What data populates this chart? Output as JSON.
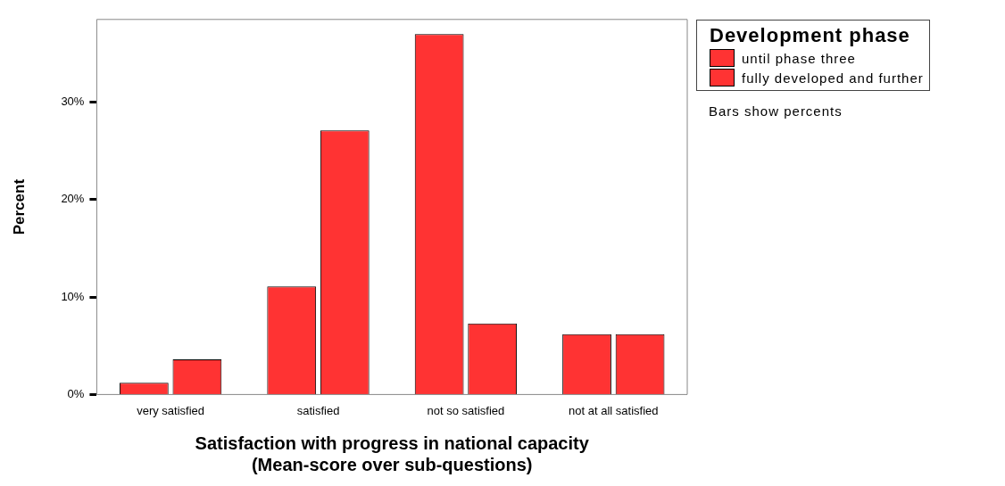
{
  "chart_data": {
    "type": "bar",
    "xlabel": "Satisfaction with progress in national capacity\n(Mean-score over sub-questions)",
    "ylabel": "Percent",
    "legend_title": "Development phase",
    "annotations": [
      "Bars show percents"
    ],
    "categories": [
      "very satisfied",
      "satisfied",
      "not so satisfied",
      "not at all satisfied"
    ],
    "series": [
      {
        "name": "until phase three",
        "color": "#ff3333",
        "values": [
          1.2,
          11.1,
          37.0,
          6.2
        ]
      },
      {
        "name": "fully developed and further",
        "color": "#ff3333",
        "values": [
          3.6,
          27.1,
          7.3,
          6.2
        ]
      }
    ],
    "ylim": [
      0,
      38.5
    ],
    "yticks": [
      {
        "value": 0,
        "label": "0%"
      },
      {
        "value": 10,
        "label": "10%"
      },
      {
        "value": 20,
        "label": "20%"
      },
      {
        "value": 30,
        "label": "30%"
      }
    ],
    "grid": false,
    "legend": "top right"
  }
}
